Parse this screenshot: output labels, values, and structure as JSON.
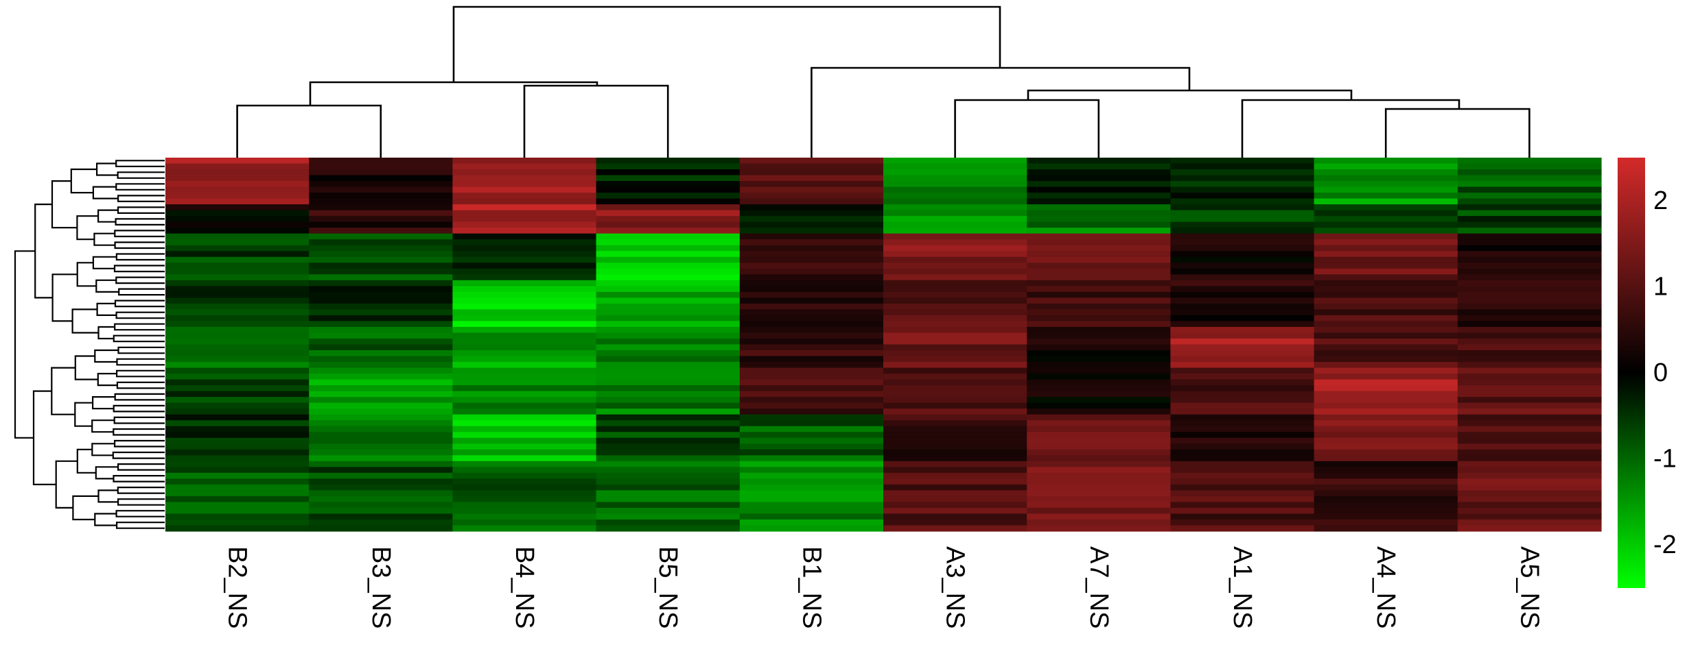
{
  "chart_data": {
    "type": "heatmap",
    "columns": [
      "B2_NS",
      "B3_NS",
      "B4_NS",
      "B5_NS",
      "B1_NS",
      "A3_NS",
      "A7_NS",
      "A1_NS",
      "A4_NS",
      "A5_NS"
    ],
    "row_labels_shown": false,
    "n_rows": 64,
    "color_scale": {
      "min": -2.5,
      "max": 2.5,
      "low_color": "#00ff00",
      "mid_color": "#000000",
      "high_color": "#d42a2a",
      "ticks": [
        2,
        1,
        0,
        -1,
        -2
      ],
      "tick_labels": [
        "2",
        "1",
        "0",
        "-1",
        "-2"
      ]
    },
    "column_dendrogram": [
      {
        "left": "B2_NS",
        "right": "B3_NS",
        "height": 0.47
      },
      {
        "left": "B4_NS",
        "right": "B5_NS",
        "height": 0.62
      },
      {
        "left": "A3_NS",
        "right": "A7_NS",
        "height": 0.51
      },
      {
        "left": "A4_NS",
        "right": "A5_NS",
        "height": 0.44
      },
      {
        "left": "A1_NS",
        "right": "A4_NS+A5_NS",
        "height": 0.5
      },
      {
        "left": "A3_NS+A7_NS",
        "right": "A1_NS+A4_NS+A5_NS",
        "height": 0.61
      },
      {
        "left": "B1_NS",
        "right": "A-cluster",
        "height": 0.82
      },
      {
        "left": "B2_NS+B3_NS",
        "right": "B4_NS+B5_NS",
        "height": 0.68
      },
      {
        "left": "B-cluster",
        "right": "B1_NS+A-cluster",
        "height": 1.0
      }
    ],
    "row_blocks": [
      {
        "rows": "1-8",
        "values": [
          1.9,
          0.3,
          1.9,
          -0.3,
          0.9,
          -1.3,
          -0.2,
          -0.4,
          -1.5,
          -0.9
        ]
      },
      {
        "rows": "9-13",
        "values": [
          0.1,
          0.5,
          2.0,
          1.6,
          -0.2,
          -1.5,
          -1.2,
          -0.6,
          -0.4,
          -0.6
        ]
      },
      {
        "rows": "14-21",
        "values": [
          -0.6,
          -0.8,
          -0.5,
          -2.1,
          0.5,
          1.5,
          1.4,
          0.2,
          1.3,
          0.4
        ]
      },
      {
        "rows": "22-29",
        "values": [
          -0.5,
          -0.5,
          -2.0,
          -1.7,
          0.4,
          1.0,
          0.8,
          0.4,
          0.9,
          0.6
        ]
      },
      {
        "rows": "30-36",
        "values": [
          -1.0,
          -0.9,
          -1.6,
          -1.3,
          0.6,
          1.3,
          0.3,
          1.9,
          1.0,
          0.8
        ]
      },
      {
        "rows": "37-44",
        "values": [
          -0.6,
          -1.5,
          -1.4,
          -1.2,
          0.8,
          0.9,
          0.2,
          0.9,
          1.9,
          1.1
        ]
      },
      {
        "rows": "45-52",
        "values": [
          -0.5,
          -1.2,
          -1.9,
          -0.7,
          -0.9,
          0.6,
          1.3,
          0.3,
          1.4,
          1.0
        ]
      },
      {
        "rows": "53-64",
        "values": [
          -0.8,
          -0.7,
          -0.9,
          -1.0,
          -1.3,
          1.0,
          1.4,
          0.9,
          0.6,
          1.2
        ]
      }
    ]
  }
}
